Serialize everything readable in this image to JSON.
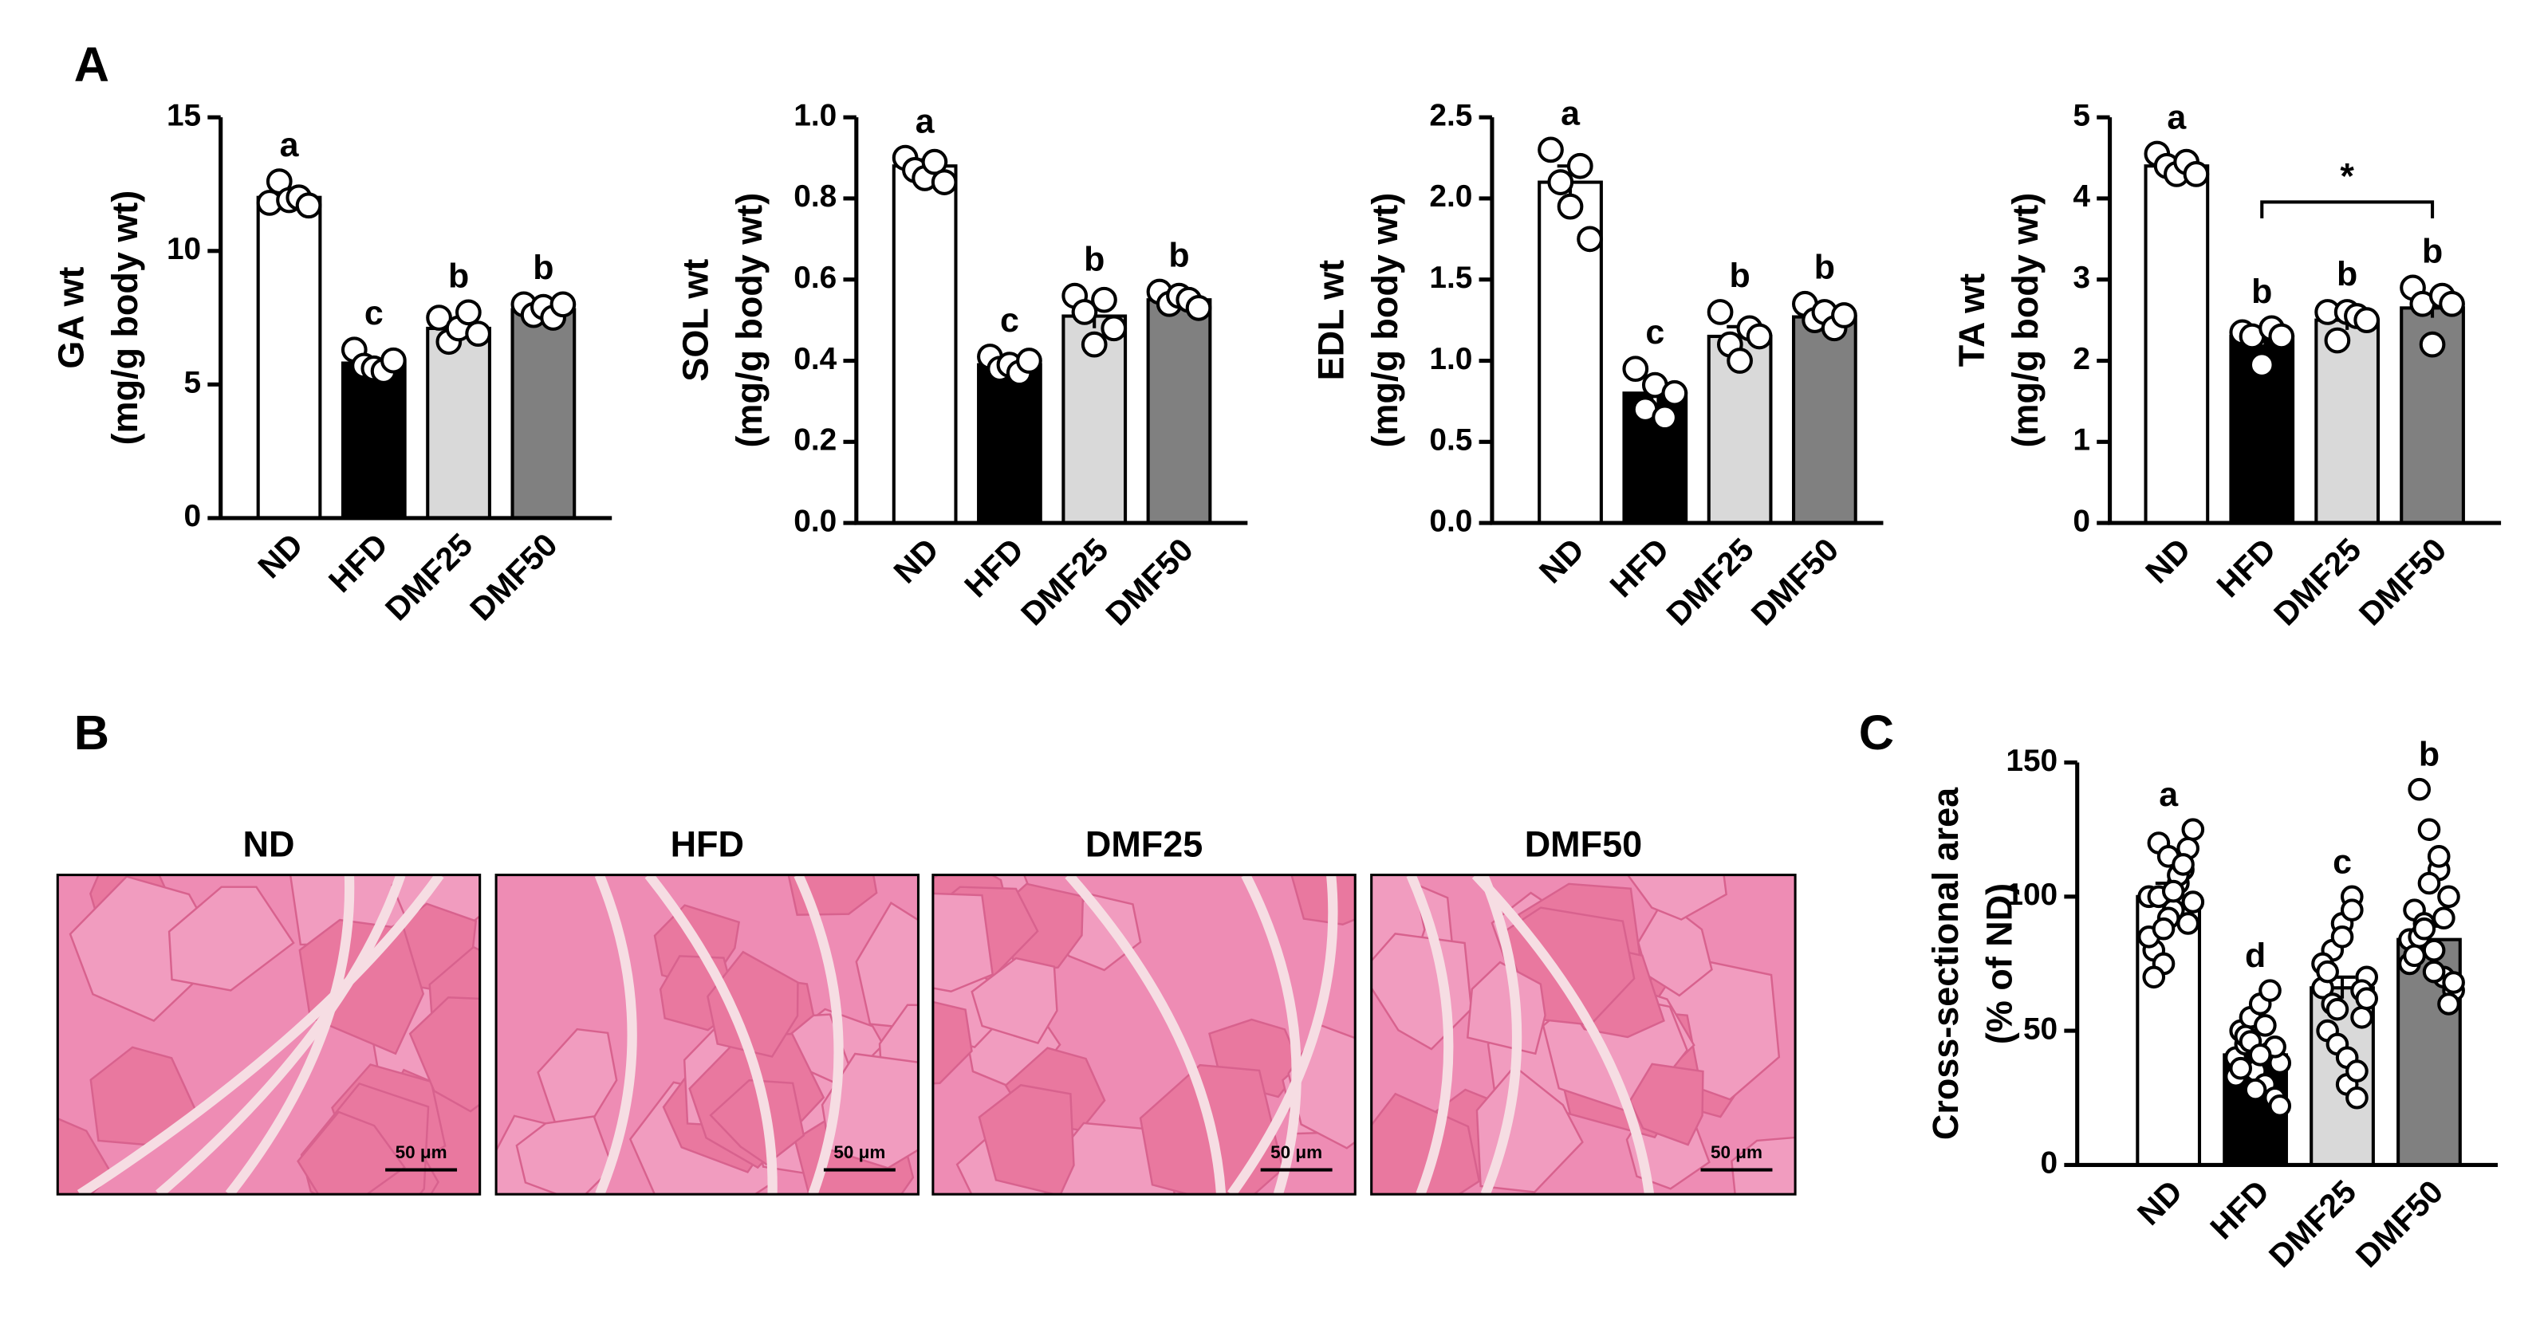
{
  "chart_data": [
    {
      "type": "bar",
      "panel": "A",
      "ylabel": [
        "GA wt",
        "(mg/g body wt)"
      ],
      "categories": [
        "ND",
        "HFD",
        "DMF25",
        "DMF50"
      ],
      "values": [
        12,
        5.8,
        7.1,
        7.8
      ],
      "errors": [
        0.2,
        0.2,
        0.3,
        0.15
      ],
      "colors": [
        "#ffffff",
        "#000000",
        "#d9d9d9",
        "#808080"
      ],
      "points": [
        [
          11.8,
          12.6,
          11.9,
          12.0,
          11.7
        ],
        [
          6.3,
          5.7,
          5.6,
          5.5,
          5.9
        ],
        [
          7.5,
          6.6,
          7.1,
          7.7,
          6.9
        ],
        [
          8.0,
          7.6,
          7.9,
          7.5,
          8.0
        ]
      ],
      "letters": [
        "a",
        "c",
        "b",
        "b"
      ],
      "ylim": [
        0,
        15
      ],
      "yticks": [
        0,
        5,
        10,
        15
      ]
    },
    {
      "type": "bar",
      "ylabel": [
        "SOL wt",
        "(mg/g body wt)"
      ],
      "categories": [
        "ND",
        "HFD",
        "DMF25",
        "DMF50"
      ],
      "values": [
        0.88,
        0.39,
        0.51,
        0.55
      ],
      "errors": [
        0.015,
        0.01,
        0.03,
        0.012
      ],
      "colors": [
        "#ffffff",
        "#000000",
        "#d9d9d9",
        "#808080"
      ],
      "points": [
        [
          0.9,
          0.87,
          0.85,
          0.89,
          0.84
        ],
        [
          0.41,
          0.38,
          0.39,
          0.37,
          0.4
        ],
        [
          0.56,
          0.52,
          0.44,
          0.55,
          0.48
        ],
        [
          0.57,
          0.54,
          0.56,
          0.55,
          0.53
        ]
      ],
      "letters": [
        "a",
        "c",
        "b",
        "b"
      ],
      "ylim": [
        0,
        1.0
      ],
      "yticks": [
        {
          "value": 0,
          "label": "0.0"
        },
        0.2,
        0.4,
        0.6,
        0.8,
        {
          "value": 1,
          "label": "1.0"
        }
      ]
    },
    {
      "type": "bar",
      "ylabel": [
        "EDL wt",
        "(mg/g body wt)"
      ],
      "categories": [
        "ND",
        "HFD",
        "DMF25",
        "DMF50"
      ],
      "values": [
        2.1,
        0.8,
        1.15,
        1.27
      ],
      "errors": [
        0.1,
        0.06,
        0.06,
        0.04
      ],
      "colors": [
        "#ffffff",
        "#000000",
        "#d9d9d9",
        "#808080"
      ],
      "points": [
        [
          2.3,
          2.1,
          1.95,
          2.2,
          1.75
        ],
        [
          0.95,
          0.7,
          0.85,
          0.65,
          0.8
        ],
        [
          1.3,
          1.1,
          1.0,
          1.2,
          1.15
        ],
        [
          1.35,
          1.25,
          1.3,
          1.2,
          1.28
        ]
      ],
      "letters": [
        "a",
        "c",
        "b",
        "b"
      ],
      "ylim": [
        0,
        2.5
      ],
      "yticks": [
        {
          "value": 0,
          "label": "0.0"
        },
        0.5,
        {
          "value": 1,
          "label": "1.0"
        },
        1.5,
        {
          "value": 2,
          "label": "2.0"
        },
        2.5
      ]
    },
    {
      "type": "bar",
      "ylabel": [
        "TA wt",
        "(mg/g body wt)"
      ],
      "categories": [
        "ND",
        "HFD",
        "DMF25",
        "DMF50"
      ],
      "values": [
        4.4,
        2.3,
        2.5,
        2.65
      ],
      "errors": [
        0.08,
        0.1,
        0.12,
        0.12
      ],
      "colors": [
        "#ffffff",
        "#000000",
        "#d9d9d9",
        "#808080"
      ],
      "points": [
        [
          4.55,
          4.4,
          4.3,
          4.45,
          4.3
        ],
        [
          2.35,
          2.3,
          1.95,
          2.4,
          2.3
        ],
        [
          2.6,
          2.25,
          2.6,
          2.55,
          2.5
        ],
        [
          2.9,
          2.7,
          2.2,
          2.8,
          2.7
        ]
      ],
      "letters": [
        "a",
        "b",
        "b",
        "b"
      ],
      "comparison": {
        "from": 1,
        "to": 3,
        "label": "*"
      },
      "ylim": [
        0,
        5
      ],
      "yticks": [
        0,
        1,
        2,
        3,
        4,
        5
      ]
    },
    {
      "type": "bar",
      "panel": "C",
      "ylabel": [
        "Cross-sectional area",
        "(% of ND)"
      ],
      "categories": [
        "ND",
        "HFD",
        "DMF25",
        "DMF50"
      ],
      "values": [
        100,
        41,
        66,
        84
      ],
      "errors": [
        5,
        3,
        4,
        5
      ],
      "colors": [
        "#ffffff",
        "#000000",
        "#d9d9d9",
        "#808080"
      ],
      "points": [
        [
          100,
          120,
          115,
          105,
          90,
          80,
          75,
          95,
          110,
          125,
          85,
          100,
          92,
          108,
          118,
          70,
          88,
          102,
          112,
          98
        ],
        [
          40,
          45,
          35,
          30,
          25,
          50,
          55,
          60,
          42,
          38,
          33,
          48,
          28,
          52,
          44,
          36,
          46,
          41,
          65,
          22
        ],
        [
          66,
          80,
          90,
          100,
          55,
          50,
          45,
          30,
          25,
          70,
          75,
          60,
          85,
          95,
          65,
          72,
          58,
          40,
          35,
          62
        ],
        [
          84,
          140,
          125,
          110,
          100,
          95,
          90,
          80,
          70,
          65,
          75,
          85,
          105,
          115,
          60,
          78,
          88,
          72,
          92,
          68
        ]
      ],
      "letters": [
        "a",
        "d",
        "c",
        "b"
      ],
      "ylim": [
        0,
        150
      ],
      "yticks": [
        0,
        50,
        100,
        150
      ]
    }
  ],
  "images": {
    "panel": "B",
    "titles": [
      "ND",
      "HFD",
      "DMF25",
      "DMF50"
    ],
    "scale_bar": "50 μm"
  }
}
